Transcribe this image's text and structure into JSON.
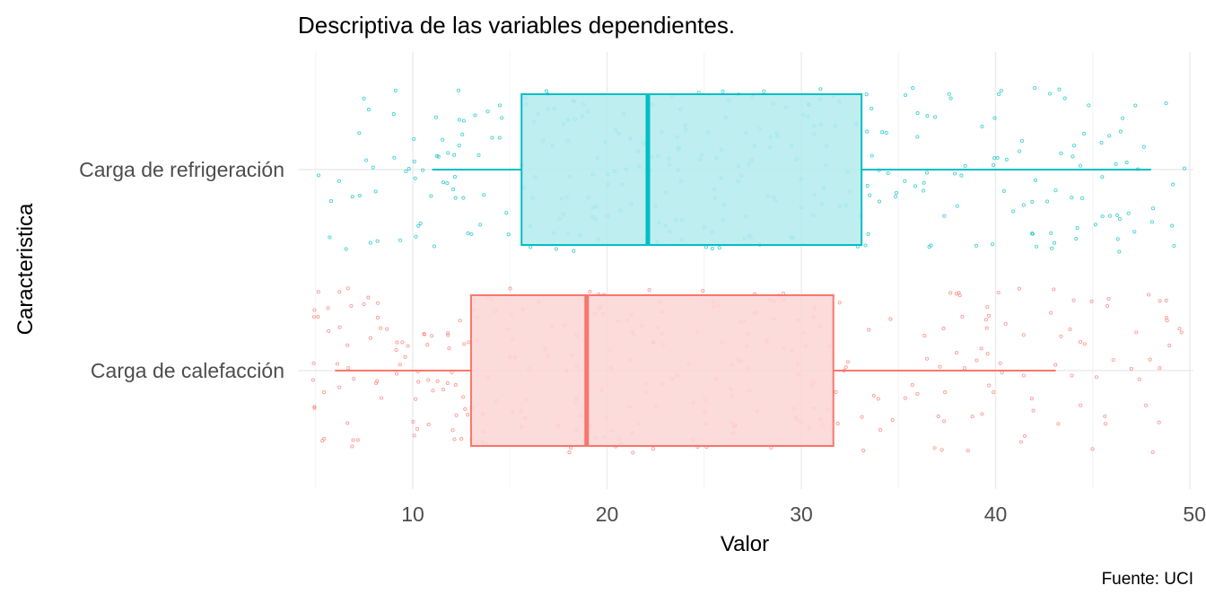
{
  "chart_data": {
    "type": "boxplot",
    "title": "Descriptiva de las variables dependientes.",
    "xlabel": "Valor",
    "ylabel": "Caracteristica",
    "caption": "Fuente: UCI",
    "xlim": [
      4.5,
      50
    ],
    "xticks": [
      10,
      20,
      30,
      40,
      50
    ],
    "grid": true,
    "legend": "none",
    "categories": [
      "Carga de refrigeración",
      "Carga de calefacción"
    ],
    "series": [
      {
        "name": "Carga de refrigeración",
        "color": "#00BFC4",
        "fill": "#B3EBED",
        "whisker_low": 11,
        "q1": 15.6,
        "median": 22.1,
        "q3": 33.1,
        "whisker_high": 48
      },
      {
        "name": "Carga de calefacción",
        "color": "#F8766D",
        "fill": "#FCD6D4",
        "whisker_low": 6.0,
        "q1": 13.0,
        "median": 18.95,
        "q3": 31.65,
        "whisker_high": 43.1
      }
    ],
    "jitter_points": "individual observations drawn as small jittered hollow points"
  }
}
